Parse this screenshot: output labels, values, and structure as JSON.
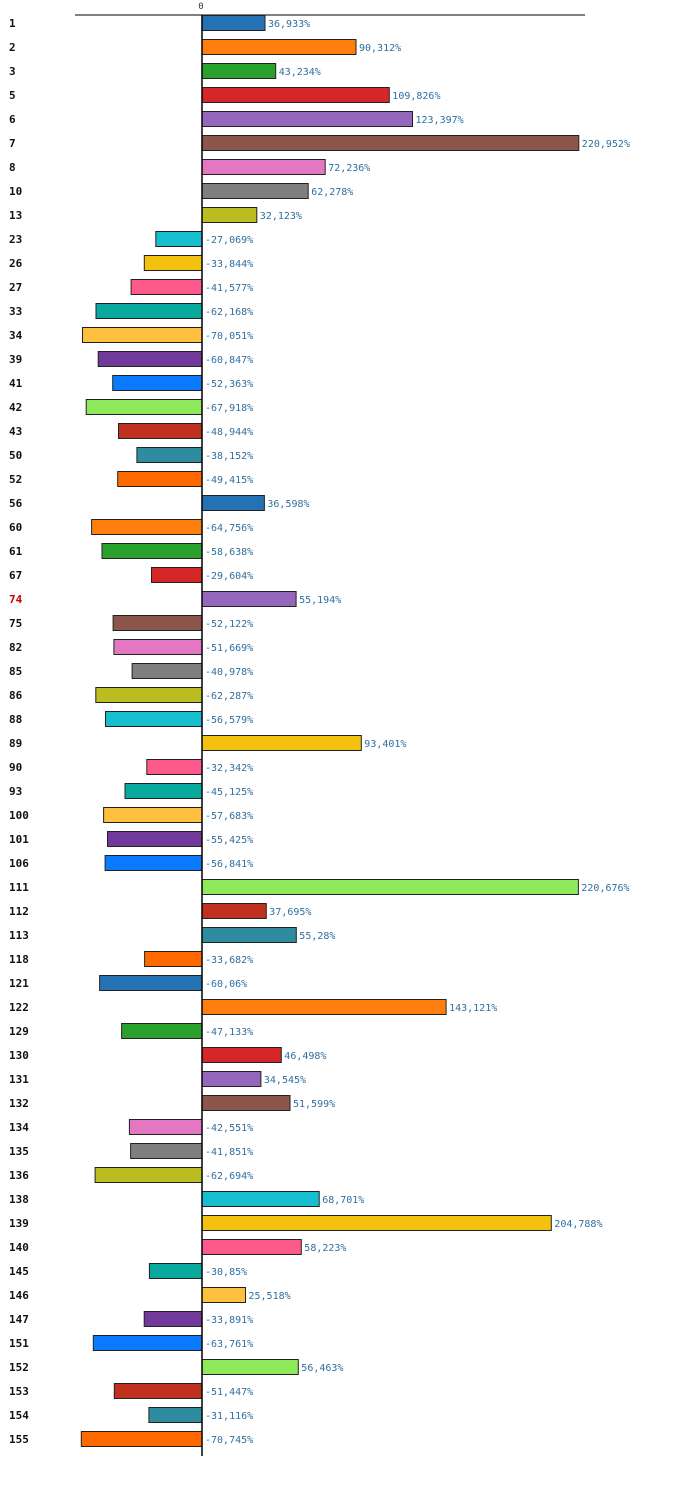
{
  "chart_data": {
    "type": "bar",
    "orientation": "horizontal",
    "title": "",
    "xlabel": "",
    "ylabel": "",
    "x_tick_labels": [
      "0"
    ],
    "xlim": [
      -100,
      300
    ],
    "highlight_category": "74",
    "highlight_color": "#d40000",
    "categories": [
      "1",
      "2",
      "3",
      "5",
      "6",
      "7",
      "8",
      "10",
      "13",
      "23",
      "26",
      "27",
      "33",
      "34",
      "39",
      "41",
      "42",
      "43",
      "50",
      "52",
      "56",
      "60",
      "61",
      "67",
      "74",
      "75",
      "82",
      "85",
      "86",
      "88",
      "89",
      "90",
      "93",
      "100",
      "101",
      "106",
      "111",
      "112",
      "113",
      "118",
      "121",
      "122",
      "129",
      "130",
      "131",
      "132",
      "134",
      "135",
      "136",
      "138",
      "139",
      "140",
      "145",
      "146",
      "147",
      "151",
      "152",
      "153",
      "154",
      "155"
    ],
    "values": [
      36.933,
      90.312,
      43.234,
      109.826,
      123.397,
      220.952,
      72.236,
      62.278,
      32.123,
      -27.069,
      -33.844,
      -41.577,
      -62.168,
      -70.051,
      -60.847,
      -52.363,
      -67.918,
      -48.944,
      -38.152,
      -49.415,
      36.598,
      -64.756,
      -58.638,
      -29.604,
      55.194,
      -52.122,
      -51.669,
      -40.978,
      -62.287,
      -56.579,
      93.401,
      -32.342,
      -45.125,
      -57.683,
      -55.425,
      -56.841,
      220.676,
      37.695,
      55.28,
      -33.682,
      -60.06,
      143.121,
      -47.133,
      46.498,
      34.545,
      51.599,
      -42.551,
      -41.851,
      -62.694,
      68.701,
      204.788,
      58.223,
      -30.85,
      25.518,
      -33.891,
      -63.761,
      56.463,
      -51.447,
      -31.116,
      -70.745
    ],
    "value_labels": [
      "36,933%",
      "90,312%",
      "43,234%",
      "109,826%",
      "123,397%",
      "220,952%",
      "72,236%",
      "62,278%",
      "32,123%",
      "-27,069%",
      "-33,844%",
      "-41,577%",
      "-62,168%",
      "-70,051%",
      "-60,847%",
      "-52,363%",
      "-67,918%",
      "-48,944%",
      "-38,152%",
      "-49,415%",
      "36,598%",
      "-64,756%",
      "-58,638%",
      "-29,604%",
      "55,194%",
      "-52,122%",
      "-51,669%",
      "-40,978%",
      "-62,287%",
      "-56,579%",
      "93,401%",
      "-32,342%",
      "-45,125%",
      "-57,683%",
      "-55,425%",
      "-56,841%",
      "220,676%",
      "37,695%",
      "55,28%",
      "-33,682%",
      "-60,06%",
      "143,121%",
      "-47,133%",
      "46,498%",
      "34,545%",
      "51,599%",
      "-42,551%",
      "-41,851%",
      "-62,694%",
      "68,701%",
      "204,788%",
      "58,223%",
      "-30,85%",
      "25,518%",
      "-33,891%",
      "-63,761%",
      "56,463%",
      "-51,447%",
      "-31,116%",
      "-70,745%"
    ],
    "bar_colors": [
      "#2471b3",
      "#ff7f0e",
      "#2ca02c",
      "#d62728",
      "#9467bd",
      "#8c564b",
      "#e377c2",
      "#7f7f7f",
      "#bcbd22",
      "#17becf",
      "#f2c20f",
      "#ff5a8c",
      "#0aa9a0",
      "#ffbf3f",
      "#71399a",
      "#0a7aff",
      "#8ee85a",
      "#c0301e",
      "#2e8c9e",
      "#ff6a00"
    ]
  }
}
